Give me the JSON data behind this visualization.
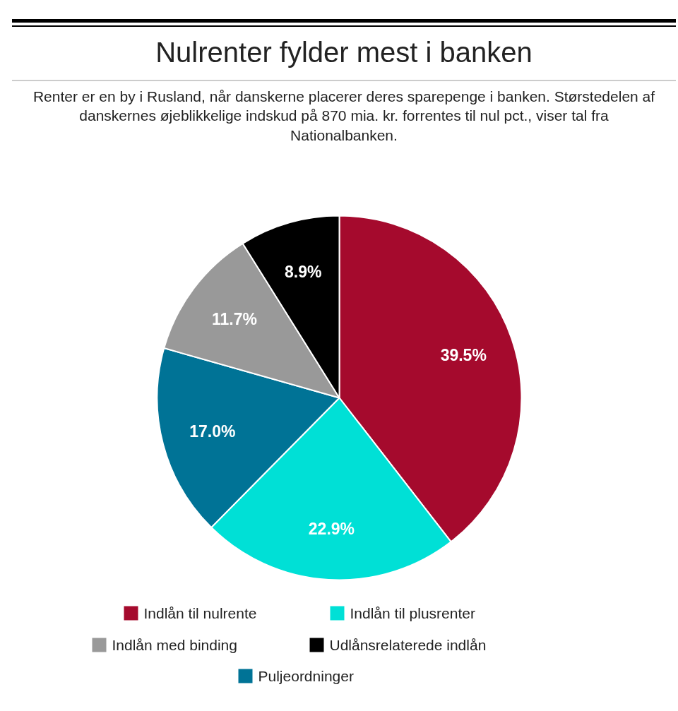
{
  "chart_data": {
    "type": "pie",
    "title": "Nulrenter fylder mest i banken",
    "subtitle": "Renter er en by i Rusland, når danskerne placerer deres sparepenge i banken. Størstedelen af danskernes øjeblikkelige indskud på 870 mia. kr. forrentes til nul pct., viser tal fra Nationalbanken.",
    "categories": [
      "Indlån til nulrente",
      "Indlån til plusrenter",
      "Puljeordninger",
      "Indlån med binding",
      "Udlånsrelaterede indlån"
    ],
    "values": [
      39.5,
      22.9,
      17.0,
      11.7,
      8.9
    ],
    "colors": [
      "#a50a2d",
      "#00e0d6",
      "#007396",
      "#999999",
      "#000000"
    ],
    "value_labels": [
      "39.5%",
      "22.9%",
      "17.0%",
      "11.7%",
      "8.9%"
    ],
    "legend": "bottom"
  }
}
